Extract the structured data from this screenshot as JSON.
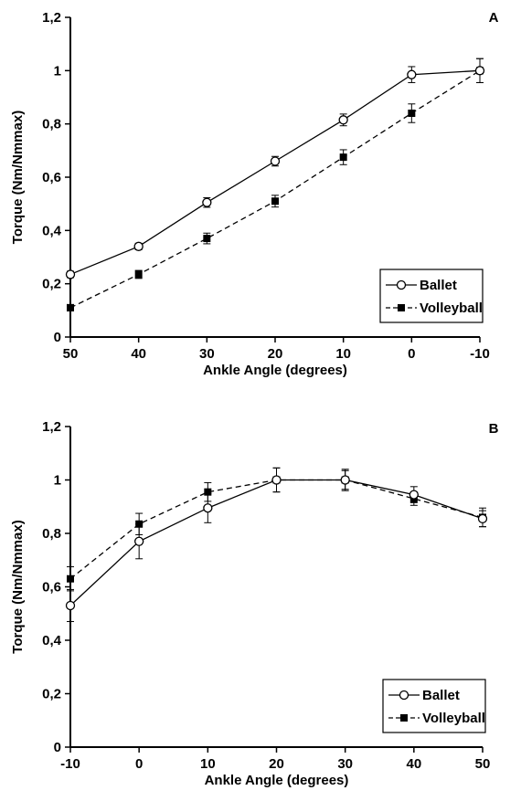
{
  "chart_data": [
    {
      "type": "line",
      "panel_label": "A",
      "xlabel": "Ankle Angle (degrees)",
      "ylabel": "Torque (Nm/Nmmax)",
      "categories": [
        "50",
        "40",
        "30",
        "20",
        "10",
        "0",
        "-10"
      ],
      "ylim": [
        0,
        1.2
      ],
      "yticks": [
        "0",
        "0,2",
        "0,4",
        "0,6",
        "0,8",
        "1",
        "1,2"
      ],
      "legend_position": "bottom-right",
      "series": [
        {
          "name": "Ballet",
          "marker": "open-circle",
          "line": "solid",
          "values": [
            0.235,
            0.34,
            0.505,
            0.66,
            0.815,
            0.985,
            1.0
          ],
          "errors": [
            0.012,
            0.012,
            0.018,
            0.018,
            0.022,
            0.03,
            0.045
          ]
        },
        {
          "name": "Volleyball",
          "marker": "filled-square",
          "line": "dashed",
          "values": [
            0.11,
            0.235,
            0.37,
            0.51,
            0.675,
            0.84,
            1.0
          ],
          "errors": [
            0.012,
            0.015,
            0.02,
            0.022,
            0.028,
            0.035,
            0.045
          ]
        }
      ]
    },
    {
      "type": "line",
      "panel_label": "B",
      "xlabel": "Ankle Angle (degrees)",
      "ylabel": "Torque (Nm/Nmmax)",
      "categories": [
        "-10",
        "0",
        "10",
        "20",
        "30",
        "40",
        "50"
      ],
      "ylim": [
        0,
        1.2
      ],
      "yticks": [
        "0",
        "0,2",
        "0,4",
        "0,6",
        "0,8",
        "1",
        "1,2"
      ],
      "legend_position": "bottom-right",
      "series": [
        {
          "name": "Ballet",
          "marker": "open-circle",
          "line": "solid",
          "values": [
            0.53,
            0.77,
            0.895,
            1.0,
            1.0,
            0.945,
            0.855
          ],
          "errors": [
            0.06,
            0.065,
            0.055,
            0.045,
            0.04,
            0.03,
            0.03
          ]
        },
        {
          "name": "Volleyball",
          "marker": "filled-square",
          "line": "dashed",
          "values": [
            0.63,
            0.835,
            0.955,
            1.0,
            1.0,
            0.93,
            0.86
          ],
          "errors": [
            0.045,
            0.04,
            0.035,
            0.045,
            0.035,
            0.025,
            0.035
          ]
        }
      ]
    }
  ]
}
